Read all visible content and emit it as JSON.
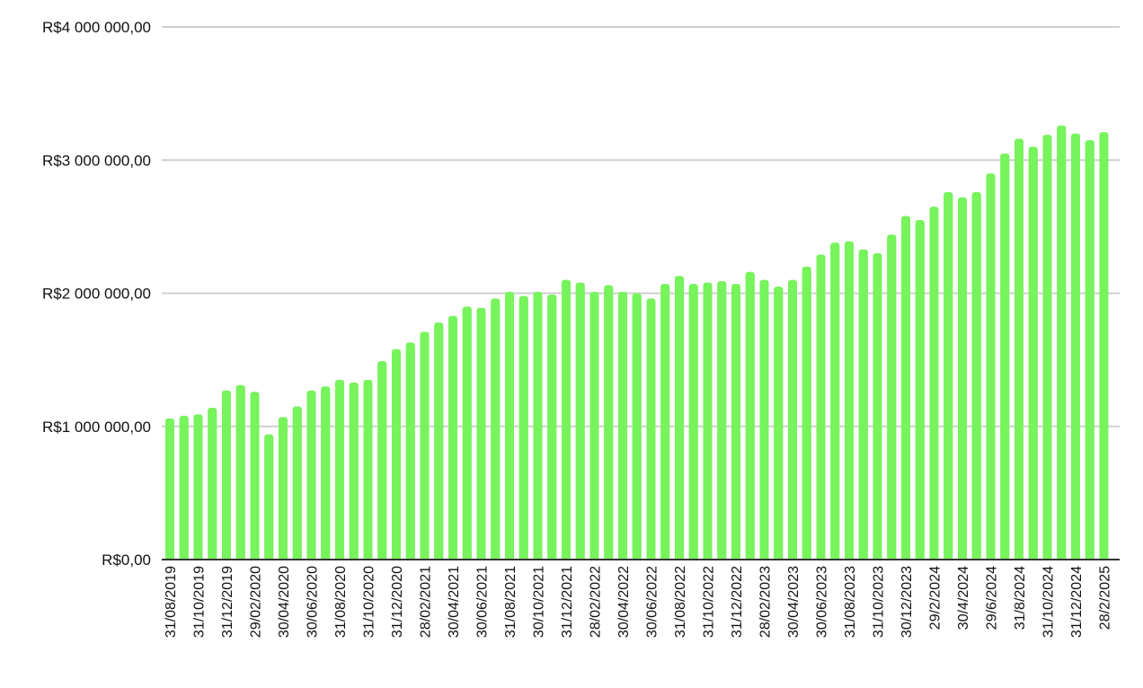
{
  "chart_data": {
    "type": "bar",
    "title": "",
    "xlabel": "",
    "ylabel": "",
    "ylim": [
      0,
      4000000
    ],
    "grid": true,
    "legend": "none",
    "colors": {
      "bar": "#77f35c",
      "grid": "#cfcfcf",
      "axis": "#333333"
    },
    "y_ticks": [
      {
        "value": 0,
        "label": "R$0,00"
      },
      {
        "value": 1000000,
        "label": "R$1 000 000,00"
      },
      {
        "value": 2000000,
        "label": "R$2 000 000,00"
      },
      {
        "value": 3000000,
        "label": "R$3 000 000,00"
      },
      {
        "value": 4000000,
        "label": "R$4 000 000,00"
      }
    ],
    "x_tick_labels": [
      "31/08/2019",
      "31/10/2019",
      "31/12/2019",
      "29/02/2020",
      "30/04/2020",
      "30/06/2020",
      "31/08/2020",
      "31/10/2020",
      "31/12/2020",
      "28/02/2021",
      "30/04/2021",
      "30/06/2021",
      "31/08/2021",
      "30/10/2021",
      "31/12/2021",
      "28/02/2022",
      "30/04/2022",
      "30/06/2022",
      "31/08/2022",
      "31/10/2022",
      "31/12/2022",
      "28/02/2023",
      "30/04/2023",
      "30/06/2023",
      "31/08/2023",
      "31/10/2023",
      "30/12/2023",
      "29/2/2024",
      "30/4/2024",
      "29/6/2024",
      "31/8/2024",
      "31/10/2024",
      "31/12/2024",
      "28/2/2025"
    ],
    "x_tick_every": 2,
    "values": [
      1060000,
      1080000,
      1090000,
      1140000,
      1270000,
      1310000,
      1260000,
      940000,
      1070000,
      1150000,
      1270000,
      1300000,
      1350000,
      1330000,
      1350000,
      1490000,
      1580000,
      1630000,
      1710000,
      1780000,
      1830000,
      1900000,
      1890000,
      1960000,
      2010000,
      1980000,
      2010000,
      1990000,
      2100000,
      2080000,
      2010000,
      2060000,
      2010000,
      2000000,
      1960000,
      2070000,
      2130000,
      2070000,
      2080000,
      2090000,
      2070000,
      2160000,
      2100000,
      2050000,
      2100000,
      2200000,
      2290000,
      2380000,
      2390000,
      2330000,
      2300000,
      2440000,
      2580000,
      2550000,
      2650000,
      2760000,
      2720000,
      2760000,
      2900000,
      3050000,
      3160000,
      3100000,
      3190000,
      3260000,
      3200000,
      3150000,
      3210000
    ]
  }
}
